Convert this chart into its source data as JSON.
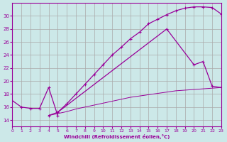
{
  "xlabel": "Windchill (Refroidissement éolien,°C)",
  "bg_color": "#cce8e8",
  "grid_color": "#aaaaaa",
  "line_color": "#990099",
  "xlim": [
    0,
    23
  ],
  "ylim": [
    13,
    32
  ],
  "yticks": [
    14,
    16,
    18,
    20,
    22,
    24,
    26,
    28,
    30
  ],
  "xticks": [
    0,
    1,
    2,
    3,
    4,
    5,
    6,
    7,
    8,
    9,
    10,
    11,
    12,
    13,
    14,
    15,
    16,
    17,
    18,
    19,
    20,
    21,
    22,
    23
  ],
  "line1": {
    "x": [
      0,
      1,
      2,
      3,
      4,
      5
    ],
    "y": [
      17.0,
      16.0,
      15.8,
      15.8,
      19.0,
      14.7
    ]
  },
  "line2": {
    "x": [
      4,
      5,
      6,
      7,
      8,
      9,
      10,
      11,
      12,
      13,
      14,
      15,
      16,
      17,
      18,
      19,
      20,
      21,
      22,
      23
    ],
    "y": [
      14.7,
      15.0,
      15.3,
      15.7,
      16.0,
      16.3,
      16.6,
      16.9,
      17.2,
      17.5,
      17.7,
      17.9,
      18.1,
      18.3,
      18.5,
      18.6,
      18.7,
      18.8,
      18.9,
      19.0
    ]
  },
  "line3": {
    "x": [
      4,
      5,
      6,
      7,
      8,
      9,
      10,
      11,
      12,
      13,
      14,
      15,
      16,
      17,
      18,
      19,
      20,
      21,
      22,
      23
    ],
    "y": [
      14.7,
      15.2,
      16.5,
      18.0,
      19.5,
      21.0,
      22.5,
      24.0,
      25.2,
      26.5,
      27.5,
      28.8,
      29.5,
      30.2,
      30.8,
      31.2,
      31.4,
      31.4,
      31.3,
      30.3
    ]
  },
  "line4": {
    "x": [
      5,
      17,
      20,
      21,
      22,
      23
    ],
    "y": [
      15.2,
      28.0,
      22.5,
      23.0,
      19.2,
      19.0
    ]
  }
}
